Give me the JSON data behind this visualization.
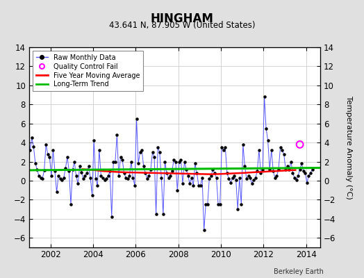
{
  "title": "HINGHAM",
  "subtitle": "43.641 N, 87.905 W (United States)",
  "ylabel": "Temperature Anomaly (°C)",
  "credit": "Berkeley Earth",
  "xlim": [
    2001.0,
    2014.67
  ],
  "ylim": [
    -7,
    14
  ],
  "yticks": [
    -6,
    -4,
    -2,
    0,
    2,
    4,
    6,
    8,
    10,
    12,
    14
  ],
  "xticks": [
    2002,
    2004,
    2006,
    2008,
    2010,
    2012,
    2014
  ],
  "background_color": "#e0e0e0",
  "plot_bg_color": "#ffffff",
  "raw_color": "#5555ff",
  "marker_color": "#000000",
  "moving_avg_color": "#ff0000",
  "trend_color": "#00bb00",
  "qc_fail_color": "#ff00ff",
  "raw_data": [
    [
      2001.042,
      3.2
    ],
    [
      2001.125,
      4.5
    ],
    [
      2001.208,
      3.6
    ],
    [
      2001.292,
      1.8
    ],
    [
      2001.375,
      1.2
    ],
    [
      2001.458,
      0.5
    ],
    [
      2001.542,
      0.3
    ],
    [
      2001.625,
      0.2
    ],
    [
      2001.708,
      1.1
    ],
    [
      2001.792,
      3.8
    ],
    [
      2001.875,
      2.8
    ],
    [
      2001.958,
      2.5
    ],
    [
      2002.042,
      0.5
    ],
    [
      2002.125,
      3.2
    ],
    [
      2002.208,
      1.0
    ],
    [
      2002.292,
      -1.2
    ],
    [
      2002.375,
      0.5
    ],
    [
      2002.458,
      0.2
    ],
    [
      2002.542,
      0.1
    ],
    [
      2002.625,
      0.3
    ],
    [
      2002.708,
      1.3
    ],
    [
      2002.792,
      2.5
    ],
    [
      2002.875,
      1.0
    ],
    [
      2002.958,
      -2.5
    ],
    [
      2003.042,
      1.2
    ],
    [
      2003.125,
      2.0
    ],
    [
      2003.208,
      0.5
    ],
    [
      2003.292,
      -0.3
    ],
    [
      2003.375,
      1.5
    ],
    [
      2003.458,
      0.9
    ],
    [
      2003.542,
      0.2
    ],
    [
      2003.625,
      0.5
    ],
    [
      2003.708,
      0.8
    ],
    [
      2003.792,
      1.5
    ],
    [
      2003.875,
      0.3
    ],
    [
      2003.958,
      -1.5
    ],
    [
      2004.042,
      4.2
    ],
    [
      2004.125,
      0.2
    ],
    [
      2004.208,
      -0.5
    ],
    [
      2004.292,
      3.2
    ],
    [
      2004.375,
      0.5
    ],
    [
      2004.458,
      0.3
    ],
    [
      2004.542,
      0.1
    ],
    [
      2004.625,
      0.2
    ],
    [
      2004.708,
      0.5
    ],
    [
      2004.792,
      1.0
    ],
    [
      2004.875,
      -3.8
    ],
    [
      2004.958,
      2.0
    ],
    [
      2005.042,
      2.0
    ],
    [
      2005.125,
      4.8
    ],
    [
      2005.208,
      0.5
    ],
    [
      2005.292,
      2.5
    ],
    [
      2005.375,
      2.2
    ],
    [
      2005.458,
      0.8
    ],
    [
      2005.542,
      0.3
    ],
    [
      2005.625,
      0.2
    ],
    [
      2005.708,
      0.5
    ],
    [
      2005.792,
      2.0
    ],
    [
      2005.875,
      0.3
    ],
    [
      2005.958,
      -0.5
    ],
    [
      2006.042,
      6.5
    ],
    [
      2006.125,
      1.8
    ],
    [
      2006.208,
      3.0
    ],
    [
      2006.292,
      3.2
    ],
    [
      2006.375,
      1.5
    ],
    [
      2006.458,
      0.8
    ],
    [
      2006.542,
      0.2
    ],
    [
      2006.625,
      0.5
    ],
    [
      2006.708,
      1.2
    ],
    [
      2006.792,
      3.0
    ],
    [
      2006.875,
      2.5
    ],
    [
      2006.958,
      -3.5
    ],
    [
      2007.042,
      3.5
    ],
    [
      2007.125,
      3.0
    ],
    [
      2007.208,
      0.3
    ],
    [
      2007.292,
      -3.5
    ],
    [
      2007.375,
      2.0
    ],
    [
      2007.458,
      0.8
    ],
    [
      2007.542,
      0.3
    ],
    [
      2007.625,
      0.5
    ],
    [
      2007.708,
      1.0
    ],
    [
      2007.792,
      2.2
    ],
    [
      2007.875,
      2.0
    ],
    [
      2007.958,
      -1.0
    ],
    [
      2008.042,
      2.0
    ],
    [
      2008.125,
      2.2
    ],
    [
      2008.208,
      -0.3
    ],
    [
      2008.292,
      2.0
    ],
    [
      2008.375,
      1.2
    ],
    [
      2008.458,
      0.5
    ],
    [
      2008.542,
      -0.3
    ],
    [
      2008.625,
      0.3
    ],
    [
      2008.708,
      -0.5
    ],
    [
      2008.792,
      1.8
    ],
    [
      2008.875,
      0.8
    ],
    [
      2008.958,
      -0.5
    ],
    [
      2009.042,
      -0.5
    ],
    [
      2009.125,
      0.3
    ],
    [
      2009.208,
      -5.2
    ],
    [
      2009.292,
      -2.5
    ],
    [
      2009.375,
      -2.5
    ],
    [
      2009.458,
      0.2
    ],
    [
      2009.542,
      0.5
    ],
    [
      2009.625,
      1.2
    ],
    [
      2009.708,
      0.8
    ],
    [
      2009.792,
      0.3
    ],
    [
      2009.875,
      -2.5
    ],
    [
      2009.958,
      -2.5
    ],
    [
      2010.042,
      3.5
    ],
    [
      2010.125,
      3.2
    ],
    [
      2010.208,
      3.5
    ],
    [
      2010.292,
      0.8
    ],
    [
      2010.375,
      0.2
    ],
    [
      2010.458,
      -0.2
    ],
    [
      2010.542,
      0.3
    ],
    [
      2010.625,
      0.5
    ],
    [
      2010.708,
      0.1
    ],
    [
      2010.792,
      -3.0
    ],
    [
      2010.875,
      0.3
    ],
    [
      2010.958,
      -2.5
    ],
    [
      2011.042,
      3.8
    ],
    [
      2011.125,
      1.5
    ],
    [
      2011.208,
      0.2
    ],
    [
      2011.292,
      0.5
    ],
    [
      2011.375,
      0.3
    ],
    [
      2011.458,
      -0.3
    ],
    [
      2011.542,
      0.1
    ],
    [
      2011.625,
      0.3
    ],
    [
      2011.708,
      1.0
    ],
    [
      2011.792,
      3.2
    ],
    [
      2011.875,
      0.8
    ],
    [
      2011.958,
      1.2
    ],
    [
      2012.042,
      8.8
    ],
    [
      2012.125,
      5.5
    ],
    [
      2012.208,
      4.2
    ],
    [
      2012.292,
      1.2
    ],
    [
      2012.375,
      3.2
    ],
    [
      2012.458,
      1.0
    ],
    [
      2012.542,
      0.3
    ],
    [
      2012.625,
      0.5
    ],
    [
      2012.708,
      1.2
    ],
    [
      2012.792,
      3.5
    ],
    [
      2012.875,
      3.2
    ],
    [
      2012.958,
      2.8
    ],
    [
      2013.042,
      1.2
    ],
    [
      2013.125,
      1.5
    ],
    [
      2013.208,
      1.2
    ],
    [
      2013.292,
      2.0
    ],
    [
      2013.375,
      0.8
    ],
    [
      2013.458,
      0.3
    ],
    [
      2013.542,
      0.1
    ],
    [
      2013.625,
      0.5
    ],
    [
      2013.708,
      1.2
    ],
    [
      2013.792,
      1.8
    ],
    [
      2013.875,
      1.0
    ],
    [
      2013.958,
      0.8
    ],
    [
      2014.042,
      -0.2
    ],
    [
      2014.125,
      0.5
    ],
    [
      2014.208,
      0.8
    ],
    [
      2014.292,
      1.2
    ]
  ],
  "qc_fail_points": [
    [
      2013.708,
      3.8
    ]
  ],
  "moving_avg": [
    [
      2003.5,
      1.2
    ],
    [
      2003.7,
      1.18
    ],
    [
      2003.9,
      1.15
    ],
    [
      2004.1,
      1.1
    ],
    [
      2004.3,
      1.05
    ],
    [
      2004.5,
      1.0
    ],
    [
      2004.7,
      0.98
    ],
    [
      2004.9,
      0.95
    ],
    [
      2005.1,
      0.92
    ],
    [
      2005.3,
      0.9
    ],
    [
      2005.5,
      0.88
    ],
    [
      2005.7,
      0.87
    ],
    [
      2005.9,
      0.86
    ],
    [
      2006.1,
      0.85
    ],
    [
      2006.3,
      0.84
    ],
    [
      2006.5,
      0.83
    ],
    [
      2006.7,
      0.82
    ],
    [
      2006.9,
      0.81
    ],
    [
      2007.1,
      0.8
    ],
    [
      2007.3,
      0.79
    ],
    [
      2007.5,
      0.78
    ],
    [
      2007.7,
      0.77
    ],
    [
      2007.9,
      0.76
    ],
    [
      2008.1,
      0.75
    ],
    [
      2008.3,
      0.74
    ],
    [
      2008.5,
      0.73
    ],
    [
      2008.7,
      0.72
    ],
    [
      2008.9,
      0.71
    ],
    [
      2009.1,
      0.7
    ],
    [
      2009.3,
      0.69
    ],
    [
      2009.5,
      0.68
    ],
    [
      2009.7,
      0.69
    ],
    [
      2009.9,
      0.7
    ],
    [
      2010.1,
      0.72
    ],
    [
      2010.3,
      0.74
    ],
    [
      2010.5,
      0.76
    ],
    [
      2010.7,
      0.78
    ],
    [
      2010.9,
      0.8
    ],
    [
      2011.1,
      0.82
    ],
    [
      2011.3,
      0.85
    ],
    [
      2011.5,
      0.88
    ],
    [
      2011.7,
      0.9
    ],
    [
      2011.9,
      0.92
    ],
    [
      2012.1,
      0.95
    ],
    [
      2012.3,
      0.98
    ],
    [
      2012.5,
      1.0
    ],
    [
      2012.7,
      1.02
    ],
    [
      2012.9,
      1.05
    ],
    [
      2013.1,
      1.08
    ],
    [
      2013.3,
      1.1
    ],
    [
      2013.5,
      1.12
    ]
  ],
  "trend_x": [
    2001.0,
    2014.67
  ],
  "trend_y": [
    1.1,
    1.35
  ],
  "fig_width": 5.24,
  "fig_height": 4.0,
  "dpi": 100
}
